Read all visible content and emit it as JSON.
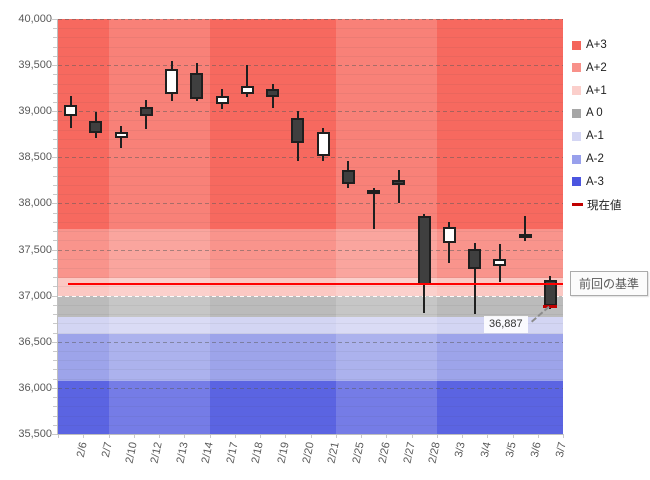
{
  "chart_data": {
    "type": "candlestick",
    "title": "",
    "xlabel": "",
    "ylabel": "",
    "y_axis": {
      "min": 35500,
      "max": 40000,
      "step": 500,
      "tick_labels": [
        "40,000",
        "39,500",
        "39,000",
        "38,500",
        "38,000",
        "37,500",
        "37,000",
        "36,500",
        "36,000",
        "35,500"
      ]
    },
    "categories": [
      "2/6",
      "2/7",
      "2/10",
      "2/12",
      "2/13",
      "2/14",
      "2/17",
      "2/18",
      "2/19",
      "2/20",
      "2/21",
      "2/25",
      "2/26",
      "2/27",
      "2/28",
      "3/3",
      "3/4",
      "3/5",
      "3/6",
      "3/7"
    ],
    "candles": [
      {
        "date": "2/6",
        "open": 38950,
        "high": 39160,
        "low": 38820,
        "close": 39070
      },
      {
        "date": "2/7",
        "open": 38890,
        "high": 38990,
        "low": 38710,
        "close": 38760
      },
      {
        "date": "2/10",
        "open": 38710,
        "high": 38840,
        "low": 38600,
        "close": 38770
      },
      {
        "date": "2/12",
        "open": 39050,
        "high": 39120,
        "low": 38810,
        "close": 38950
      },
      {
        "date": "2/13",
        "open": 39190,
        "high": 39550,
        "low": 39110,
        "close": 39460
      },
      {
        "date": "2/14",
        "open": 39410,
        "high": 39520,
        "low": 39110,
        "close": 39130
      },
      {
        "date": "2/17",
        "open": 39080,
        "high": 39240,
        "low": 39020,
        "close": 39170
      },
      {
        "date": "2/18",
        "open": 39190,
        "high": 39500,
        "low": 39150,
        "close": 39270
      },
      {
        "date": "2/19",
        "open": 39240,
        "high": 39290,
        "low": 39030,
        "close": 39150
      },
      {
        "date": "2/20",
        "open": 38930,
        "high": 39000,
        "low": 38460,
        "close": 38650
      },
      {
        "date": "2/21",
        "open": 38510,
        "high": 38820,
        "low": 38460,
        "close": 38780
      },
      {
        "date": "2/25",
        "open": 38360,
        "high": 38460,
        "low": 38170,
        "close": 38210
      },
      {
        "date": "2/26",
        "open": 38150,
        "high": 38170,
        "low": 37720,
        "close": 38100
      },
      {
        "date": "2/27",
        "open": 38250,
        "high": 38360,
        "low": 38000,
        "close": 38200
      },
      {
        "date": "2/28",
        "open": 37860,
        "high": 37890,
        "low": 36810,
        "close": 37120
      },
      {
        "date": "3/3",
        "open": 37570,
        "high": 37800,
        "low": 37350,
        "close": 37750
      },
      {
        "date": "3/4",
        "open": 37510,
        "high": 37570,
        "low": 36800,
        "close": 37290
      },
      {
        "date": "3/5",
        "open": 37320,
        "high": 37560,
        "low": 37150,
        "close": 37400
      },
      {
        "date": "3/6",
        "open": 37620,
        "high": 37860,
        "low": 37590,
        "close": 37670
      },
      {
        "date": "3/7",
        "open": 37170,
        "high": 37210,
        "low": 36850,
        "close": 36887
      }
    ],
    "bands": [
      {
        "name": "A+3",
        "from": 37720,
        "to": 40000,
        "plot_color": "#F7695F",
        "legend_color": "#F4655B"
      },
      {
        "name": "A+2",
        "from": 37190,
        "to": 37720,
        "plot_color": "#F9948C",
        "legend_color": "#F8918A"
      },
      {
        "name": "A+1",
        "from": 37000,
        "to": 37190,
        "plot_color": "#FBC8C3",
        "legend_color": "#FBCFCB"
      },
      {
        "name": "A 0",
        "from": 36770,
        "to": 37000,
        "plot_color": "#BBBBBB",
        "legend_color": "#A6A6A6"
      },
      {
        "name": "A-1",
        "from": 36580,
        "to": 36770,
        "plot_color": "#D3D5F3",
        "legend_color": "#D4D6F4"
      },
      {
        "name": "A-2",
        "from": 36080,
        "to": 36580,
        "plot_color": "#9DA4EA",
        "legend_color": "#98A0EC"
      },
      {
        "name": "A-3",
        "from": 35500,
        "to": 36080,
        "plot_color": "#5B64E2",
        "legend_color": "#4B55E0"
      }
    ],
    "light_week_column_ranges": [
      [
        2,
        5
      ],
      [
        11,
        14
      ]
    ],
    "baseline": {
      "value": 37130,
      "color": "#FF0000",
      "label": "前回の基準"
    },
    "current_value": {
      "value": 36887,
      "label": "36,887",
      "marker_color": "#C00000",
      "legend_label": "現在値"
    },
    "legend_position": "right",
    "grid": "dashed-major-solid-minor"
  }
}
